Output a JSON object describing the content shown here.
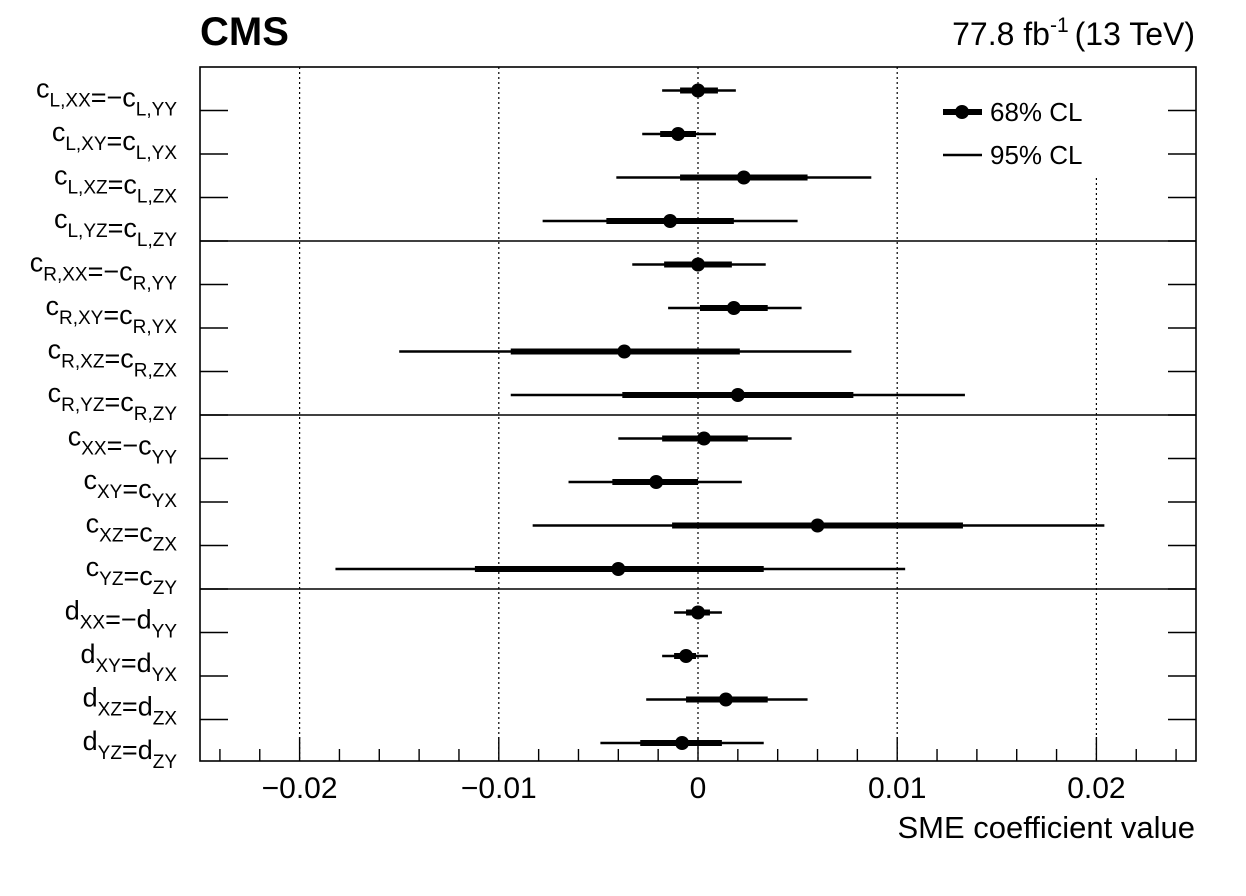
{
  "chart_data": {
    "type": "forest",
    "title": "CMS",
    "luminosity": {
      "value": "77.8 fb",
      "sup": "-1",
      "energy": "(13 TeV)"
    },
    "xlabel": "SME coefficient value",
    "xlim": [
      -0.025,
      0.025
    ],
    "xticks": [
      {
        "value": -0.02,
        "label": "−0.02"
      },
      {
        "value": -0.01,
        "label": "−0.01"
      },
      {
        "value": 0,
        "label": "0"
      },
      {
        "value": 0.01,
        "label": "0.01"
      },
      {
        "value": 0.02,
        "label": "0.02"
      }
    ],
    "legend": [
      {
        "key": "cl68",
        "label": "68% CL"
      },
      {
        "key": "cl95",
        "label": "95% CL"
      }
    ],
    "groups": [
      {
        "rows": [
          {
            "name": "cLXX",
            "label": [
              {
                "t": "c",
                "s": "L,XX"
              },
              {
                "t": "=−c",
                "s": "L,YY"
              }
            ],
            "value": 0.0,
            "cl68": [
              -0.0009,
              0.001
            ],
            "cl95": [
              -0.0018,
              0.0019
            ]
          },
          {
            "name": "cLXY",
            "label": [
              {
                "t": "c",
                "s": "L,XY"
              },
              {
                "t": "=c",
                "s": "L,YX"
              }
            ],
            "value": -0.001,
            "cl68": [
              -0.0019,
              -0.0001
            ],
            "cl95": [
              -0.0028,
              0.0009
            ]
          },
          {
            "name": "cLXZ",
            "label": [
              {
                "t": "c",
                "s": "L,XZ"
              },
              {
                "t": "=c",
                "s": "L,ZX"
              }
            ],
            "value": 0.0023,
            "cl68": [
              -0.0009,
              0.0055
            ],
            "cl95": [
              -0.0041,
              0.0087
            ]
          },
          {
            "name": "cLYZ",
            "label": [
              {
                "t": "c",
                "s": "L,YZ"
              },
              {
                "t": "=c",
                "s": "L,ZY"
              }
            ],
            "value": -0.0014,
            "cl68": [
              -0.0046,
              0.0018
            ],
            "cl95": [
              -0.0078,
              0.005
            ]
          }
        ]
      },
      {
        "rows": [
          {
            "name": "cRXX",
            "label": [
              {
                "t": "c",
                "s": "R,XX"
              },
              {
                "t": "=−c",
                "s": "R,YY"
              }
            ],
            "value": 0.0,
            "cl68": [
              -0.0017,
              0.0017
            ],
            "cl95": [
              -0.0033,
              0.0034
            ]
          },
          {
            "name": "cRXY",
            "label": [
              {
                "t": "c",
                "s": "R,XY"
              },
              {
                "t": "=c",
                "s": "R,YX"
              }
            ],
            "value": 0.0018,
            "cl68": [
              0.0001,
              0.0035
            ],
            "cl95": [
              -0.0015,
              0.0052
            ]
          },
          {
            "name": "cRXZ",
            "label": [
              {
                "t": "c",
                "s": "R,XZ"
              },
              {
                "t": "=c",
                "s": "R,ZX"
              }
            ],
            "value": -0.0037,
            "cl68": [
              -0.0094,
              0.0021
            ],
            "cl95": [
              -0.015,
              0.0077
            ]
          },
          {
            "name": "cRYZ",
            "label": [
              {
                "t": "c",
                "s": "R,YZ"
              },
              {
                "t": "=c",
                "s": "R,ZY"
              }
            ],
            "value": 0.002,
            "cl68": [
              -0.0038,
              0.0078
            ],
            "cl95": [
              -0.0094,
              0.0134
            ]
          }
        ]
      },
      {
        "rows": [
          {
            "name": "cXX",
            "label": [
              {
                "t": "c",
                "s": "XX"
              },
              {
                "t": "=−c",
                "s": "YY"
              }
            ],
            "value": 0.0003,
            "cl68": [
              -0.0018,
              0.0025
            ],
            "cl95": [
              -0.004,
              0.0047
            ]
          },
          {
            "name": "cXY",
            "label": [
              {
                "t": "c",
                "s": "XY"
              },
              {
                "t": "=c",
                "s": "YX"
              }
            ],
            "value": -0.0021,
            "cl68": [
              -0.0043,
              0.0
            ],
            "cl95": [
              -0.0065,
              0.0022
            ]
          },
          {
            "name": "cXZ",
            "label": [
              {
                "t": "c",
                "s": "XZ"
              },
              {
                "t": "=c",
                "s": "ZX"
              }
            ],
            "value": 0.006,
            "cl68": [
              -0.0013,
              0.0133
            ],
            "cl95": [
              -0.0083,
              0.0204
            ]
          },
          {
            "name": "cYZ",
            "label": [
              {
                "t": "c",
                "s": "YZ"
              },
              {
                "t": "=c",
                "s": "ZY"
              }
            ],
            "value": -0.004,
            "cl68": [
              -0.0112,
              0.0033
            ],
            "cl95": [
              -0.0182,
              0.0104
            ]
          }
        ]
      },
      {
        "rows": [
          {
            "name": "dXX",
            "label": [
              {
                "t": "d",
                "s": "XX"
              },
              {
                "t": "=−d",
                "s": "YY"
              }
            ],
            "value": 0.0,
            "cl68": [
              -0.0006,
              0.0006
            ],
            "cl95": [
              -0.0012,
              0.0012
            ]
          },
          {
            "name": "dXY",
            "label": [
              {
                "t": "d",
                "s": "XY"
              },
              {
                "t": "=d",
                "s": "YX"
              }
            ],
            "value": -0.0006,
            "cl68": [
              -0.0012,
              -0.0001
            ],
            "cl95": [
              -0.0018,
              0.0005
            ]
          },
          {
            "name": "dXZ",
            "label": [
              {
                "t": "d",
                "s": "XZ"
              },
              {
                "t": "=d",
                "s": "ZX"
              }
            ],
            "value": 0.0014,
            "cl68": [
              -0.0006,
              0.0035
            ],
            "cl95": [
              -0.0026,
              0.0055
            ]
          },
          {
            "name": "dYZ",
            "label": [
              {
                "t": "d",
                "s": "YZ"
              },
              {
                "t": "=d",
                "s": "ZY"
              }
            ],
            "value": -0.0008,
            "cl68": [
              -0.0029,
              0.0012
            ],
            "cl95": [
              -0.0049,
              0.0033
            ]
          }
        ]
      }
    ]
  }
}
